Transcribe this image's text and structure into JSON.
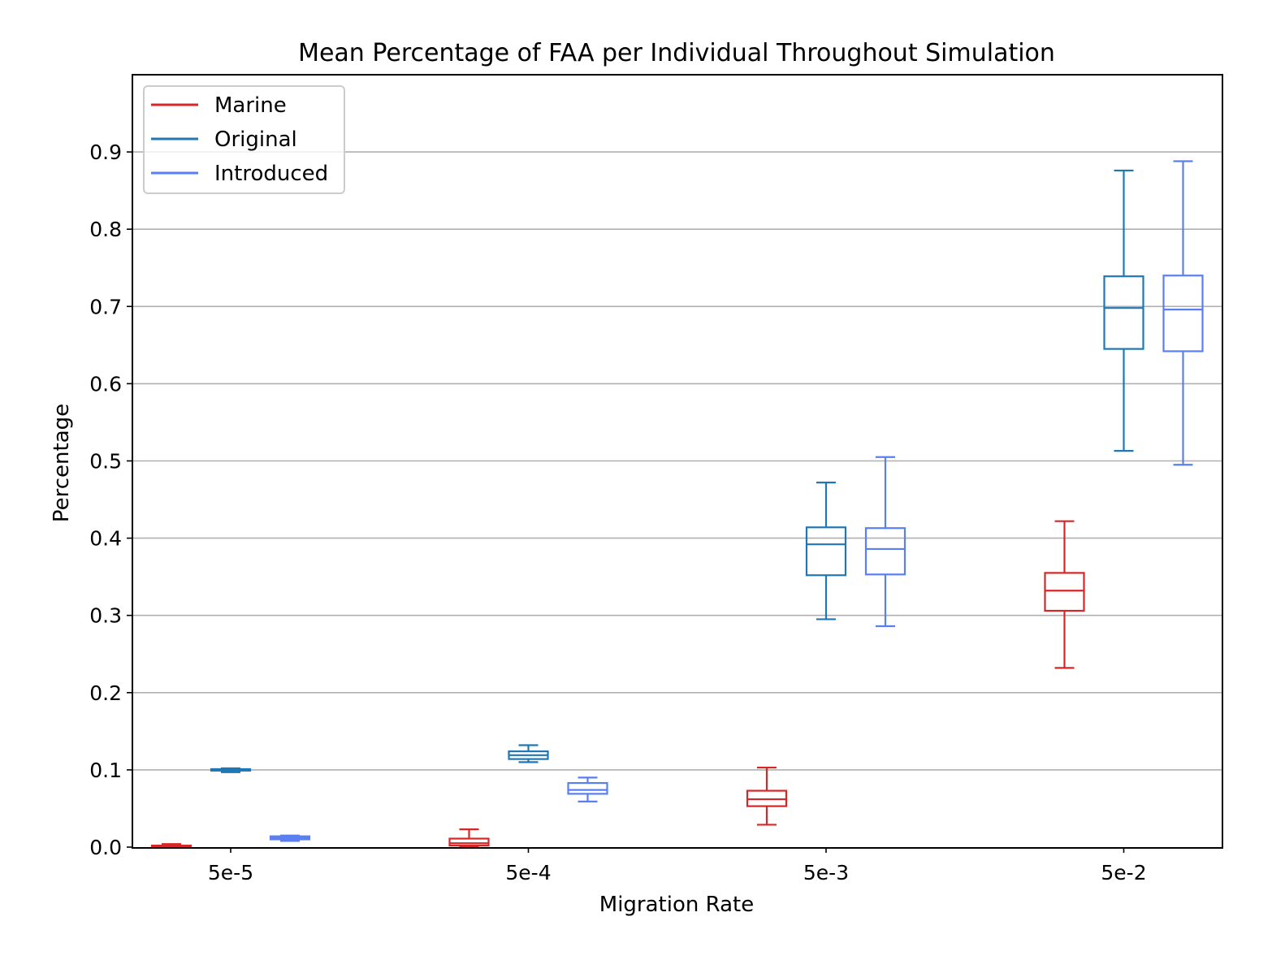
{
  "chart_data": {
    "type": "box",
    "title": "Mean Percentage of FAA per Individual Throughout Simulation",
    "xlabel": "Migration Rate",
    "ylabel": "Percentage",
    "categories": [
      "5e-5",
      "5e-4",
      "5e-3",
      "5e-2"
    ],
    "ylim": [
      0,
      1.0
    ],
    "yticks": [
      "0.0",
      "0.1",
      "0.2",
      "0.3",
      "0.4",
      "0.5",
      "0.6",
      "0.7",
      "0.8",
      "0.9"
    ],
    "grid": "horizontal",
    "legend_position": "upper-left",
    "series": [
      {
        "name": "Marine",
        "color": "#d62728",
        "boxes": [
          {
            "category": "5e-5",
            "whisker_low": 0.0,
            "q1": 0.0,
            "median": 0.001,
            "q3": 0.002,
            "whisker_high": 0.004
          },
          {
            "category": "5e-4",
            "whisker_low": 0.0,
            "q1": 0.002,
            "median": 0.005,
            "q3": 0.011,
            "whisker_high": 0.023
          },
          {
            "category": "5e-3",
            "whisker_low": 0.029,
            "q1": 0.053,
            "median": 0.062,
            "q3": 0.073,
            "whisker_high": 0.103
          },
          {
            "category": "5e-2",
            "whisker_low": 0.232,
            "q1": 0.306,
            "median": 0.332,
            "q3": 0.355,
            "whisker_high": 0.422
          }
        ]
      },
      {
        "name": "Original",
        "color": "#1f77b4",
        "boxes": [
          {
            "category": "5e-5",
            "whisker_low": 0.097,
            "q1": 0.099,
            "median": 0.1,
            "q3": 0.101,
            "whisker_high": 0.102
          },
          {
            "category": "5e-4",
            "whisker_low": 0.11,
            "q1": 0.114,
            "median": 0.119,
            "q3": 0.124,
            "whisker_high": 0.132
          },
          {
            "category": "5e-3",
            "whisker_low": 0.295,
            "q1": 0.352,
            "median": 0.392,
            "q3": 0.414,
            "whisker_high": 0.472
          },
          {
            "category": "5e-2",
            "whisker_low": 0.513,
            "q1": 0.645,
            "median": 0.698,
            "q3": 0.739,
            "whisker_high": 0.876
          }
        ]
      },
      {
        "name": "Introduced",
        "color": "#5a7ff0",
        "boxes": [
          {
            "category": "5e-5",
            "whisker_low": 0.008,
            "q1": 0.01,
            "median": 0.012,
            "q3": 0.014,
            "whisker_high": 0.015
          },
          {
            "category": "5e-4",
            "whisker_low": 0.059,
            "q1": 0.069,
            "median": 0.074,
            "q3": 0.083,
            "whisker_high": 0.09
          },
          {
            "category": "5e-3",
            "whisker_low": 0.286,
            "q1": 0.353,
            "median": 0.386,
            "q3": 0.413,
            "whisker_high": 0.505
          },
          {
            "category": "5e-2",
            "whisker_low": 0.495,
            "q1": 0.642,
            "median": 0.696,
            "q3": 0.74,
            "whisker_high": 0.888
          }
        ]
      }
    ]
  }
}
